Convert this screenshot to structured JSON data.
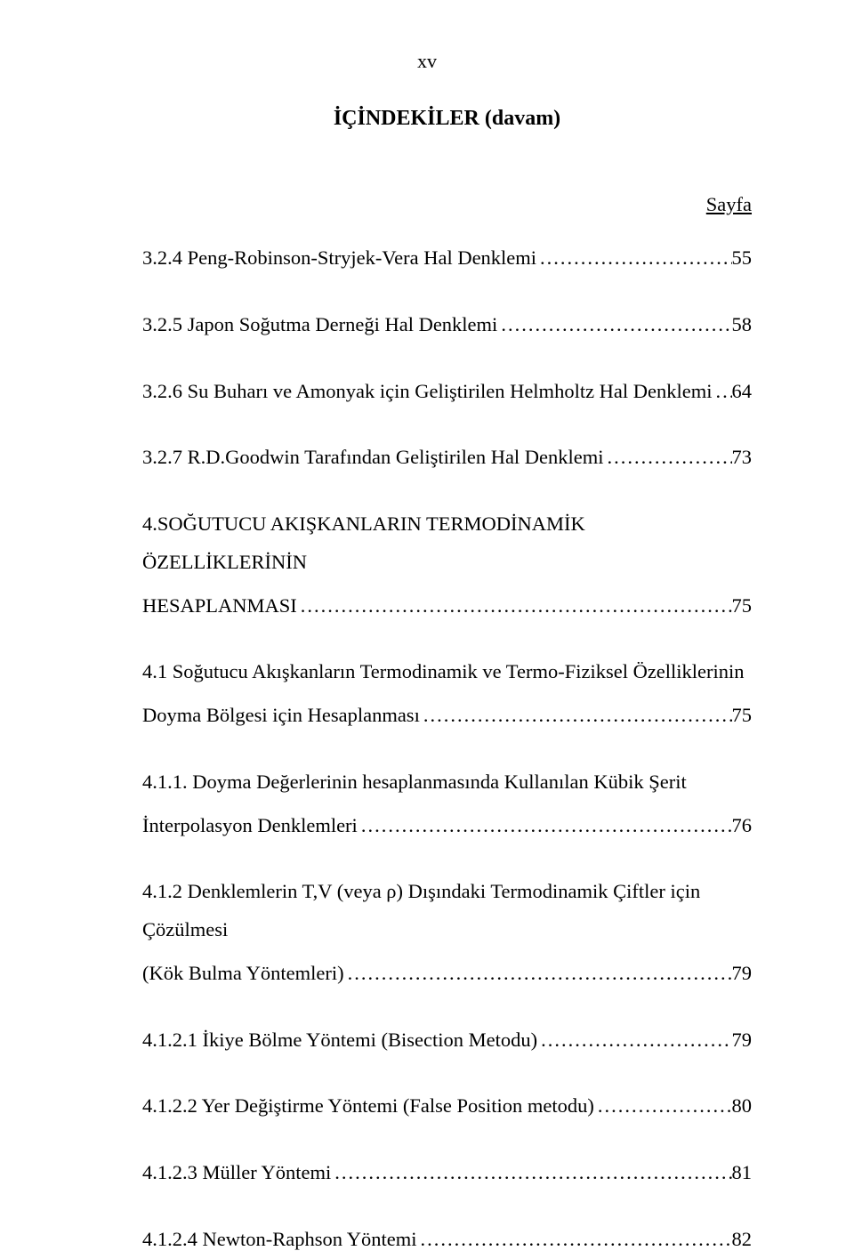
{
  "pageHeader": "xv",
  "title": "İÇİNDEKİLER (davam)",
  "pageLabel": "Sayfa",
  "entries": [
    {
      "text": "3.2.4 Peng-Robinson-Stryjek-Vera Hal Denklemi",
      "page": "55",
      "multiline": false
    },
    {
      "text": "3.2.5 Japon Soğutma Derneği Hal Denklemi",
      "page": "58",
      "multiline": false
    },
    {
      "text": "3.2.6 Su Buharı ve  Amonyak için Geliştirilen Helmholtz Hal Denklemi",
      "page": "64",
      "multiline": false
    },
    {
      "text": "3.2.7 R.D.Goodwin Tarafından Geliştirilen Hal Denklemi",
      "page": "73",
      "multiline": false
    },
    {
      "firstLine": "4.SOĞUTUCU AKIŞKANLARIN TERMODİNAMİK ÖZELLİKLERİNİN",
      "text": "HESAPLANMASI",
      "page": "75",
      "multiline": true
    },
    {
      "firstLine": "4.1 Soğutucu Akışkanların Termodinamik ve Termo-Fiziksel Özelliklerinin",
      "text": "Doyma Bölgesi için Hesaplanması",
      "page": "75",
      "multiline": true
    },
    {
      "firstLine": "4.1.1. Doyma Değerlerinin  hesaplanmasında Kullanılan Kübik Şerit",
      "text": "İnterpolasyon Denklemleri",
      "page": "76",
      "multiline": true
    },
    {
      "firstLine": "4.1.2 Denklemlerin T,V (veya ρ) Dışındaki Termodinamik Çiftler için Çözülmesi",
      "text": "(Kök Bulma Yöntemleri)",
      "page": "79",
      "multiline": true
    },
    {
      "text": "4.1.2.1 İkiye Bölme Yöntemi (Bisection Metodu)",
      "page": "79",
      "multiline": false
    },
    {
      "text": "4.1.2.2 Yer Değiştirme Yöntemi (False Position metodu)",
      "page": "80",
      "multiline": false
    },
    {
      "text": "4.1.2.3 Müller Yöntemi",
      "page": "81",
      "multiline": false
    },
    {
      "text": "4.1.2.4 Newton-Raphson Yöntemi",
      "page": "82",
      "multiline": false
    }
  ]
}
